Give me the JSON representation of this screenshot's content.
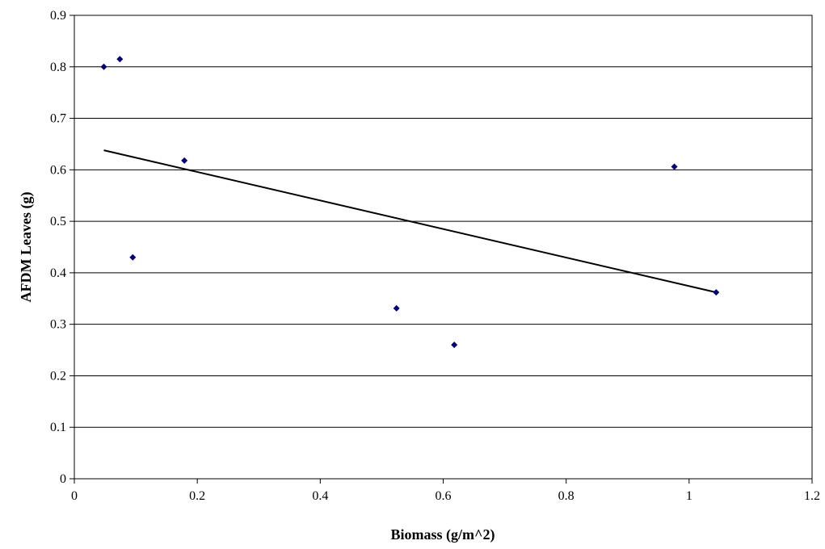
{
  "chart_data": {
    "type": "scatter",
    "xlabel": "Biomass (g/m^2)",
    "ylabel": "AFDM Leaves (g)",
    "xlim": [
      0,
      1.2
    ],
    "ylim": [
      0,
      0.9
    ],
    "x_ticks": [
      "0",
      "0.2",
      "0.4",
      "0.6",
      "0.8",
      "1",
      "1.2"
    ],
    "y_ticks": [
      "0",
      "0.1",
      "0.2",
      "0.3",
      "0.4",
      "0.5",
      "0.6",
      "0.7",
      "0.8",
      "0.9"
    ],
    "grid": "horizontal",
    "legend": "none",
    "marker_color": "#000080",
    "trendline_color": "#000000",
    "series": [
      {
        "points": [
          {
            "x": 0.048,
            "y": 0.8
          },
          {
            "x": 0.074,
            "y": 0.815
          },
          {
            "x": 0.095,
            "y": 0.43
          },
          {
            "x": 0.179,
            "y": 0.618
          },
          {
            "x": 0.524,
            "y": 0.331
          },
          {
            "x": 0.618,
            "y": 0.26
          },
          {
            "x": 0.976,
            "y": 0.606
          },
          {
            "x": 1.044,
            "y": 0.362
          }
        ]
      }
    ],
    "trendline": {
      "type": "linear",
      "x": [
        0.048,
        1.044
      ],
      "y": [
        0.638,
        0.362
      ]
    }
  }
}
